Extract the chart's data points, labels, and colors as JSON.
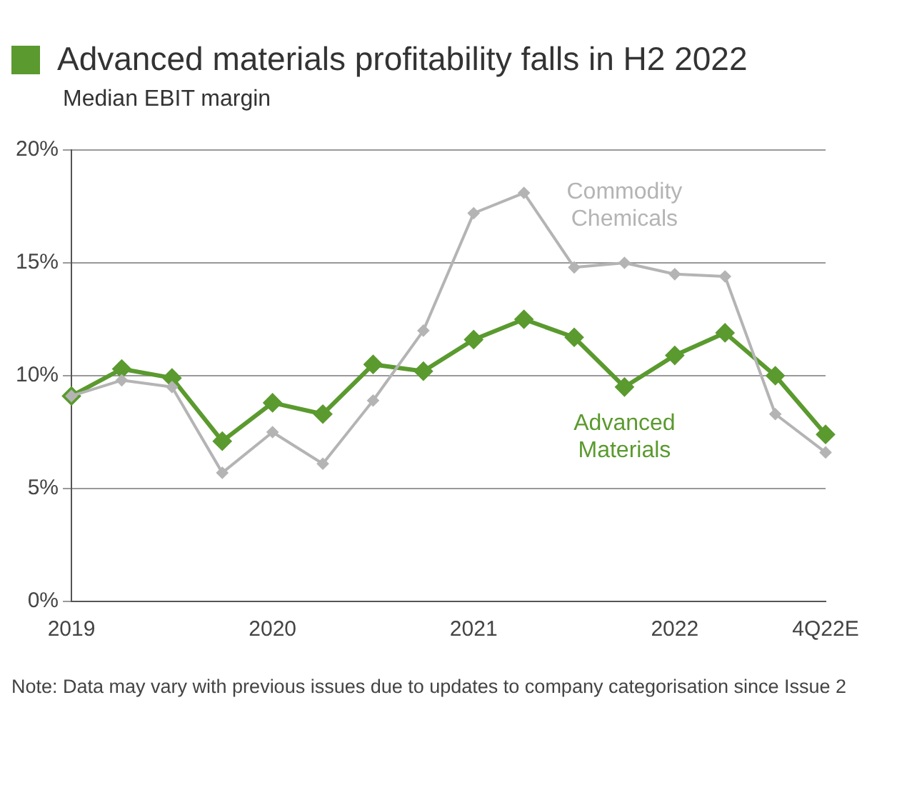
{
  "chart_data": {
    "type": "line",
    "title": "Advanced materials profitability falls in H2 2022",
    "subtitle": "Median EBIT margin",
    "categories": [
      "2019",
      null,
      null,
      null,
      "2020",
      null,
      null,
      null,
      "2021",
      null,
      null,
      null,
      "2022",
      null,
      null,
      "4Q22E"
    ],
    "series": [
      {
        "name": "Commodity Chemicals",
        "color": "#b4b4b4",
        "values": [
          9.1,
          9.8,
          9.5,
          5.7,
          7.5,
          6.1,
          8.9,
          12.0,
          17.2,
          18.1,
          14.8,
          15.0,
          14.5,
          14.4,
          8.3,
          6.6
        ]
      },
      {
        "name": "Advanced Materials",
        "color": "#5a9a2e",
        "values": [
          9.1,
          10.3,
          9.9,
          7.1,
          8.8,
          8.3,
          10.5,
          10.2,
          11.6,
          12.5,
          11.7,
          9.5,
          10.9,
          11.9,
          10.0,
          7.4
        ]
      }
    ],
    "ylim": [
      0,
      20
    ],
    "yticks": [
      {
        "value": 0,
        "label": "0%"
      },
      {
        "value": 5,
        "label": "5%"
      },
      {
        "value": 10,
        "label": "10%"
      },
      {
        "value": 15,
        "label": "15%"
      },
      {
        "value": 20,
        "label": "20%"
      }
    ],
    "grid": "y",
    "legend": false,
    "marker": "diamond",
    "line_style": "solid",
    "annotations": [
      "Note: Data may vary with previous issues due to updates to company categorisation since Issue 2"
    ]
  }
}
